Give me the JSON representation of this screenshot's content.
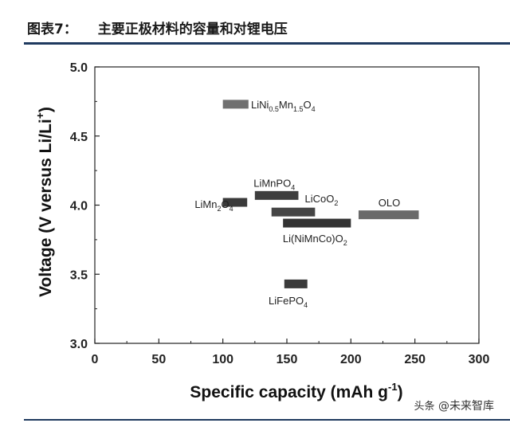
{
  "header": {
    "figure_label": "图表7：",
    "title": "主要正极材料的容量和对锂电压"
  },
  "chart_data": {
    "type": "range-bar",
    "xlabel": "Specific capacity (mAh g",
    "xlabel_sup": "-1",
    "xlabel_end": ")",
    "ylabel": "Voltage (V versus Li/Li",
    "ylabel_sup": "+",
    "ylabel_end": ")",
    "xlim": [
      0,
      300
    ],
    "ylim": [
      3.0,
      5.0
    ],
    "x_ticks": [
      "0",
      "50",
      "100",
      "150",
      "200",
      "250",
      "300"
    ],
    "y_ticks": [
      "3.0",
      "3.5",
      "4.0",
      "4.5",
      "5.0"
    ],
    "materials": [
      {
        "name": "LiNi0.5Mn1.5O4",
        "parts": [
          [
            "LiNi",
            ""
          ],
          [
            "0.5",
            "sub"
          ],
          [
            "Mn",
            ""
          ],
          [
            "1.5",
            "sub"
          ],
          [
            "O",
            ""
          ],
          [
            "4",
            "sub"
          ]
        ],
        "capacity": [
          100,
          120
        ],
        "voltage": 4.73,
        "color": "#707070",
        "label_x": 122,
        "label_v": 4.73,
        "anchor": "start"
      },
      {
        "name": "LiMnPO4",
        "parts": [
          [
            "LiMnPO",
            ""
          ],
          [
            "4",
            "sub"
          ]
        ],
        "capacity": [
          125,
          159
        ],
        "voltage": 4.07,
        "color": "#3e3e3e",
        "label_x": 124,
        "label_v": 4.16,
        "anchor": "start"
      },
      {
        "name": "LiMn2O4",
        "parts": [
          [
            "LiMn",
            ""
          ],
          [
            "2",
            "sub"
          ],
          [
            "O",
            ""
          ],
          [
            "4",
            "sub"
          ]
        ],
        "capacity": [
          100,
          119
        ],
        "voltage": 4.02,
        "color": "#3a3a3a",
        "label_x": 78,
        "label_v": 4.01,
        "anchor": "start"
      },
      {
        "name": "LiCoO2",
        "parts": [
          [
            "LiCoO",
            ""
          ],
          [
            "2",
            "sub"
          ]
        ],
        "capacity": [
          138,
          172
        ],
        "voltage": 3.95,
        "color": "#454545",
        "label_x": 164,
        "label_v": 4.05,
        "anchor": "start"
      },
      {
        "name": "OLO",
        "parts": [
          [
            "OLO",
            ""
          ]
        ],
        "capacity": [
          206,
          253
        ],
        "voltage": 3.93,
        "color": "#6a6a6a",
        "label_x": 230,
        "label_v": 4.02,
        "anchor": "middle"
      },
      {
        "name": "Li(NiMnCo)O2",
        "parts": [
          [
            "Li(NiMnCo)O",
            ""
          ],
          [
            "2",
            "sub"
          ]
        ],
        "capacity": [
          147,
          200
        ],
        "voltage": 3.87,
        "color": "#333333",
        "label_x": 172,
        "label_v": 3.76,
        "anchor": "middle"
      },
      {
        "name": "LiFePO4",
        "parts": [
          [
            "LiFePO",
            ""
          ],
          [
            "4",
            "sub"
          ]
        ],
        "capacity": [
          148,
          166
        ],
        "voltage": 3.43,
        "color": "#3a3a3a",
        "label_x": 151,
        "label_v": 3.31,
        "anchor": "middle"
      }
    ]
  },
  "watermark": {
    "icon_text": "头条",
    "text": "@未来智库"
  }
}
